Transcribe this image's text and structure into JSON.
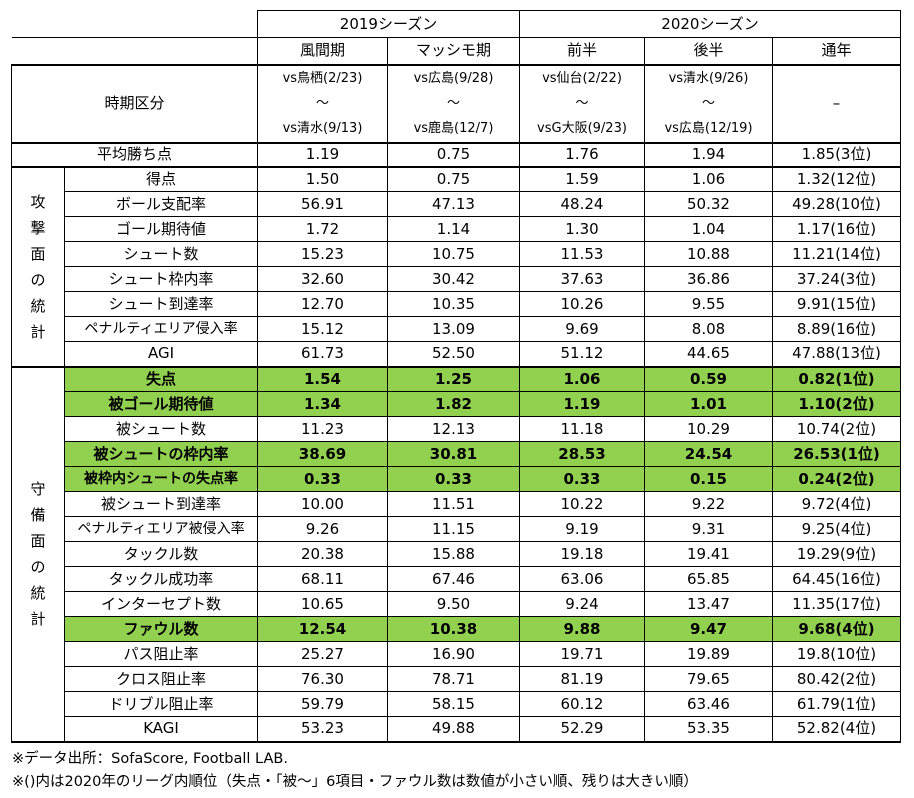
{
  "header": {
    "season_2019": "2019シーズン",
    "season_2020": "2020シーズン",
    "columns": [
      "風間期",
      "マッシモ期",
      "前半",
      "後半",
      "通年"
    ]
  },
  "period_row": {
    "label": "時期区分",
    "cells": [
      {
        "from": "vs鳥栖(2/23)",
        "sep": "〜",
        "to": "vs清水(9/13)"
      },
      {
        "from": "vs広島(9/28)",
        "sep": "〜",
        "to": "vs鹿島(12/7)"
      },
      {
        "from": "vs仙台(2/22)",
        "sep": "〜",
        "to": "vsG大阪(9/23)"
      },
      {
        "from": "vs清水(9/26)",
        "sep": "〜",
        "to": "vs広島(12/19)"
      }
    ],
    "full_year": "–"
  },
  "avg_points": {
    "label": "平均勝ち点",
    "values": [
      "1.19",
      "0.75",
      "1.76",
      "1.94",
      "1.85(3位)"
    ]
  },
  "attack": {
    "group_chars": [
      "攻",
      "撃",
      "面",
      "の",
      "統",
      "計"
    ],
    "rows": [
      {
        "label": "得点",
        "values": [
          "1.50",
          "0.75",
          "1.59",
          "1.06",
          "1.32(12位)"
        ],
        "highlight": false
      },
      {
        "label": "ボール支配率",
        "values": [
          "56.91",
          "47.13",
          "48.24",
          "50.32",
          "49.28(10位)"
        ],
        "highlight": false
      },
      {
        "label": "ゴール期待値",
        "values": [
          "1.72",
          "1.14",
          "1.30",
          "1.04",
          "1.17(16位)"
        ],
        "highlight": false
      },
      {
        "label": "シュート数",
        "values": [
          "15.23",
          "10.75",
          "11.53",
          "10.88",
          "11.21(14位)"
        ],
        "highlight": false
      },
      {
        "label": "シュート枠内率",
        "values": [
          "32.60",
          "30.42",
          "37.63",
          "36.86",
          "37.24(3位)"
        ],
        "highlight": false
      },
      {
        "label": "シュート到達率",
        "values": [
          "12.70",
          "10.35",
          "10.26",
          "9.55",
          "9.91(15位)"
        ],
        "highlight": false
      },
      {
        "label": "ペナルティエリア侵入率",
        "values": [
          "15.12",
          "13.09",
          "9.69",
          "8.08",
          "8.89(16位)"
        ],
        "highlight": false
      },
      {
        "label": "AGI",
        "values": [
          "61.73",
          "52.50",
          "51.12",
          "44.65",
          "47.88(13位)"
        ],
        "highlight": false
      }
    ]
  },
  "defense": {
    "group_chars": [
      "守",
      "備",
      "面",
      "の",
      "統",
      "計"
    ],
    "rows": [
      {
        "label": "失点",
        "values": [
          "1.54",
          "1.25",
          "1.06",
          "0.59",
          "0.82(1位)"
        ],
        "highlight": true
      },
      {
        "label": "被ゴール期待値",
        "values": [
          "1.34",
          "1.82",
          "1.19",
          "1.01",
          "1.10(2位)"
        ],
        "highlight": true
      },
      {
        "label": "被シュート数",
        "values": [
          "11.23",
          "12.13",
          "11.18",
          "10.29",
          "10.74(2位)"
        ],
        "highlight": false
      },
      {
        "label": "被シュートの枠内率",
        "values": [
          "38.69",
          "30.81",
          "28.53",
          "24.54",
          "26.53(1位)"
        ],
        "highlight": true
      },
      {
        "label": "被枠内シュートの失点率",
        "values": [
          "0.33",
          "0.33",
          "0.33",
          "0.15",
          "0.24(2位)"
        ],
        "highlight": true
      },
      {
        "label": "被シュート到達率",
        "values": [
          "10.00",
          "11.51",
          "10.22",
          "9.22",
          "9.72(4位)"
        ],
        "highlight": false
      },
      {
        "label": "ペナルティエリア被侵入率",
        "values": [
          "9.26",
          "11.15",
          "9.19",
          "9.31",
          "9.25(4位)"
        ],
        "highlight": false
      },
      {
        "label": "タックル数",
        "values": [
          "20.38",
          "15.88",
          "19.18",
          "19.41",
          "19.29(9位)"
        ],
        "highlight": false
      },
      {
        "label": "タックル成功率",
        "values": [
          "68.11",
          "67.46",
          "63.06",
          "65.85",
          "64.45(16位)"
        ],
        "highlight": false
      },
      {
        "label": "インターセプト数",
        "values": [
          "10.65",
          "9.50",
          "9.24",
          "13.47",
          "11.35(17位)"
        ],
        "highlight": false
      },
      {
        "label": "ファウル数",
        "values": [
          "12.54",
          "10.38",
          "9.88",
          "9.47",
          "9.68(4位)"
        ],
        "highlight": true
      },
      {
        "label": "パス阻止率",
        "values": [
          "25.27",
          "16.90",
          "19.71",
          "19.89",
          "19.8(10位)"
        ],
        "highlight": false
      },
      {
        "label": "クロス阻止率",
        "values": [
          "76.30",
          "78.71",
          "81.19",
          "79.65",
          "80.42(2位)"
        ],
        "highlight": false
      },
      {
        "label": "ドリブル阻止率",
        "values": [
          "59.79",
          "58.15",
          "60.12",
          "63.46",
          "61.79(1位)"
        ],
        "highlight": false
      },
      {
        "label": "KAGI",
        "values": [
          "53.23",
          "49.88",
          "52.29",
          "53.35",
          "52.82(4位)"
        ],
        "highlight": false
      }
    ]
  },
  "notes": [
    "※データ出所：SofaScore, Football LAB.",
    "※()内は2020年のリーグ内順位（失点・「被〜」6項目・ファウル数は数値が小さい順、残りは大きい順）"
  ],
  "colors": {
    "highlight": "#92d050"
  }
}
